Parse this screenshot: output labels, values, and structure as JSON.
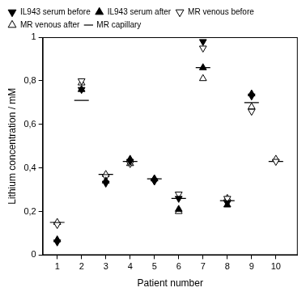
{
  "chart_data": {
    "type": "scatter",
    "x_label": "Patient number",
    "y_label": "Lithium concentration / mM",
    "x": [
      1,
      2,
      3,
      4,
      5,
      6,
      7,
      8,
      9,
      10
    ],
    "series": [
      {
        "name": "IL943 serum before",
        "color": "#000000",
        "marker": "triangle-down-filled",
        "values": [
          0.06,
          0.76,
          0.33,
          0.43,
          0.34,
          0.26,
          0.98,
          0.24,
          0.73,
          null
        ]
      },
      {
        "name": "IL943 serum after",
        "color": "#000000",
        "marker": "triangle-up-filled",
        "values": [
          0.07,
          0.76,
          0.34,
          0.44,
          0.35,
          0.21,
          0.86,
          0.23,
          0.74,
          null
        ]
      },
      {
        "name": "MR venous before",
        "color": "#000000",
        "marker": "triangle-down-open",
        "values": [
          0.14,
          0.8,
          0.36,
          0.42,
          0.34,
          0.28,
          0.95,
          0.26,
          0.66,
          0.43
        ]
      },
      {
        "name": "MR venous after",
        "color": "#000000",
        "marker": "triangle-up-open",
        "values": [
          0.15,
          0.79,
          0.37,
          0.42,
          0.35,
          0.2,
          0.81,
          0.26,
          0.68,
          0.44
        ]
      },
      {
        "name": "MR capillary",
        "color": "#000000",
        "marker": "line",
        "values": [
          0.15,
          0.71,
          0.37,
          0.43,
          0.35,
          0.26,
          0.86,
          0.25,
          0.7,
          0.43
        ]
      }
    ],
    "xlim": [
      0.4,
      10.9
    ],
    "xticks": [
      1,
      2,
      3,
      4,
      5,
      6,
      7,
      8,
      9,
      10
    ],
    "ylim": [
      0,
      1
    ],
    "yticks": [
      0,
      {
        "value": 0.2,
        "label": "0,2"
      },
      {
        "value": 0.4,
        "label": "0,4"
      },
      {
        "value": 0.6,
        "label": "0,6"
      },
      {
        "value": 0.8,
        "label": "0,8"
      },
      1
    ],
    "grid": false,
    "legend": "top"
  }
}
